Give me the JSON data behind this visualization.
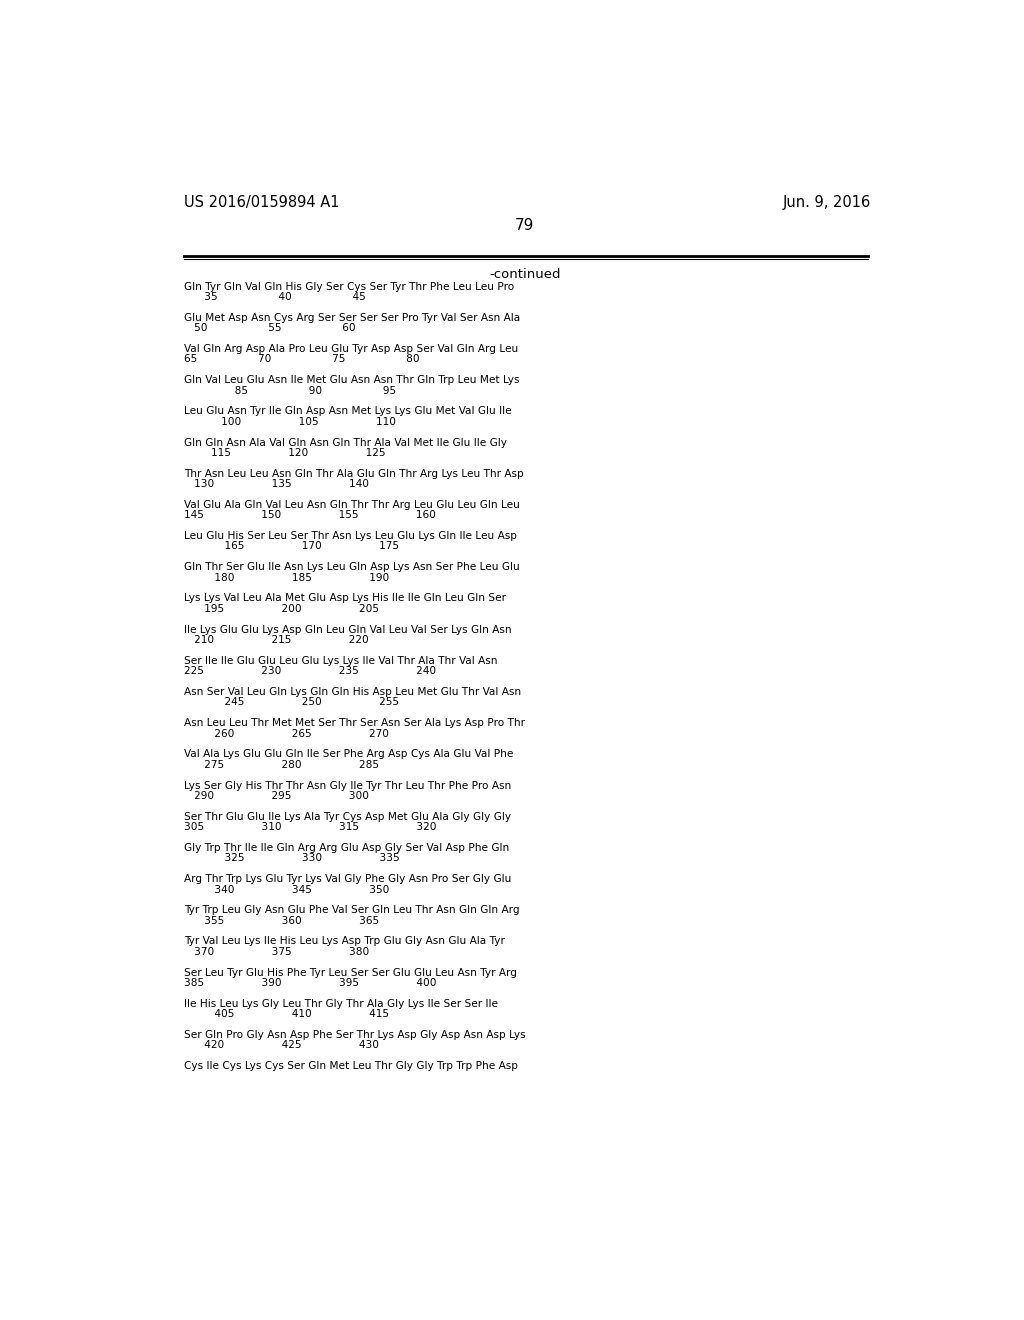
{
  "left_header": "US 2016/0159894 A1",
  "right_header": "Jun. 9, 2016",
  "page_number": "79",
  "continued_label": "-continued",
  "seq_blocks": [
    [
      "Gln Tyr Gln Val Gln His Gly Ser Cys Ser Tyr Thr Phe Leu Leu Pro",
      "      35                  40                  45"
    ],
    [
      "Glu Met Asp Asn Cys Arg Ser Ser Ser Ser Pro Tyr Val Ser Asn Ala",
      "   50                  55                  60"
    ],
    [
      "Val Gln Arg Asp Ala Pro Leu Glu Tyr Asp Asp Ser Val Gln Arg Leu",
      "65                  70                  75                  80"
    ],
    [
      "Gln Val Leu Glu Asn Ile Met Glu Asn Asn Thr Gln Trp Leu Met Lys",
      "               85                  90                  95"
    ],
    [
      "Leu Glu Asn Tyr Ile Gln Asp Asn Met Lys Lys Glu Met Val Glu Ile",
      "           100                 105                 110"
    ],
    [
      "Gln Gln Asn Ala Val Gln Asn Gln Thr Ala Val Met Ile Glu Ile Gly",
      "        115                 120                 125"
    ],
    [
      "Thr Asn Leu Leu Asn Gln Thr Ala Glu Gln Thr Arg Lys Leu Thr Asp",
      "   130                 135                 140"
    ],
    [
      "Val Glu Ala Gln Val Leu Asn Gln Thr Thr Arg Leu Glu Leu Gln Leu",
      "145                 150                 155                 160"
    ],
    [
      "Leu Glu His Ser Leu Ser Thr Asn Lys Leu Glu Lys Gln Ile Leu Asp",
      "            165                 170                 175"
    ],
    [
      "Gln Thr Ser Glu Ile Asn Lys Leu Gln Asp Lys Asn Ser Phe Leu Glu",
      "         180                 185                 190"
    ],
    [
      "Lys Lys Val Leu Ala Met Glu Asp Lys His Ile Ile Gln Leu Gln Ser",
      "      195                 200                 205"
    ],
    [
      "Ile Lys Glu Glu Lys Asp Gln Leu Gln Val Leu Val Ser Lys Gln Asn",
      "   210                 215                 220"
    ],
    [
      "Ser Ile Ile Glu Glu Leu Glu Lys Lys Ile Val Thr Ala Thr Val Asn",
      "225                 230                 235                 240"
    ],
    [
      "Asn Ser Val Leu Gln Lys Gln Gln His Asp Leu Met Glu Thr Val Asn",
      "            245                 250                 255"
    ],
    [
      "Asn Leu Leu Thr Met Met Ser Thr Ser Asn Ser Ala Lys Asp Pro Thr",
      "         260                 265                 270"
    ],
    [
      "Val Ala Lys Glu Glu Gln Ile Ser Phe Arg Asp Cys Ala Glu Val Phe",
      "      275                 280                 285"
    ],
    [
      "Lys Ser Gly His Thr Thr Asn Gly Ile Tyr Thr Leu Thr Phe Pro Asn",
      "   290                 295                 300"
    ],
    [
      "Ser Thr Glu Glu Ile Lys Ala Tyr Cys Asp Met Glu Ala Gly Gly Gly",
      "305                 310                 315                 320"
    ],
    [
      "Gly Trp Thr Ile Ile Gln Arg Arg Glu Asp Gly Ser Val Asp Phe Gln",
      "            325                 330                 335"
    ],
    [
      "Arg Thr Trp Lys Glu Tyr Lys Val Gly Phe Gly Asn Pro Ser Gly Glu",
      "         340                 345                 350"
    ],
    [
      "Tyr Trp Leu Gly Asn Glu Phe Val Ser Gln Leu Thr Asn Gln Gln Arg",
      "      355                 360                 365"
    ],
    [
      "Tyr Val Leu Lys Ile His Leu Lys Asp Trp Glu Gly Asn Glu Ala Tyr",
      "   370                 375                 380"
    ],
    [
      "Ser Leu Tyr Glu His Phe Tyr Leu Ser Ser Glu Glu Leu Asn Tyr Arg",
      "385                 390                 395                 400"
    ],
    [
      "Ile His Leu Lys Gly Leu Thr Gly Thr Ala Gly Lys Ile Ser Ser Ile",
      "         405                 410                 415"
    ],
    [
      "Ser Gln Pro Gly Asn Asp Phe Ser Thr Lys Asp Gly Asp Asn Asp Lys",
      "      420                 425                 430"
    ],
    [
      "Cys Ile Cys Lys Cys Ser Gln Met Leu Thr Gly Gly Trp Trp Phe Asp"
    ]
  ]
}
